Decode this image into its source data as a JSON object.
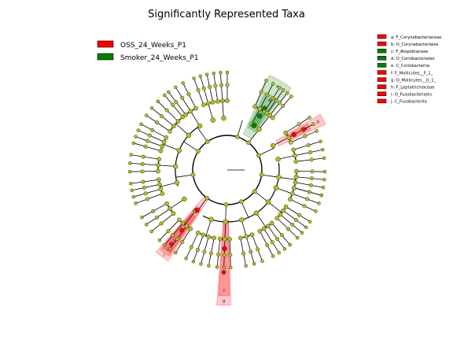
{
  "chart_data": {
    "type": "cladogram",
    "title": "Significantly Represented Taxa",
    "groups": [
      {
        "name": "OSS_24_Weeks_P1",
        "color": "#ff0000"
      },
      {
        "name": "Smoker_24_Weeks_P1",
        "color": "#008000"
      }
    ],
    "background_node_color": "#b5bd1e",
    "taxa": [
      {
        "key": "a",
        "label": "a: F_Corynebacteriaceae",
        "group": "OSS_24_Weeks_P1",
        "clade_angle_deg": -28
      },
      {
        "key": "b",
        "label": "b: O_Corynebacteriales",
        "group": "OSS_24_Weeks_P1",
        "clade_angle_deg": -28
      },
      {
        "key": "c",
        "label": "c: F_Atopobiaceae",
        "group": "Smoker_24_Weeks_P1",
        "clade_angle_deg": -59
      },
      {
        "key": "d",
        "label": "d: O_Coriobacteriales",
        "group": "Smoker_24_Weeks_P1",
        "clade_angle_deg": -59
      },
      {
        "key": "e",
        "label": "e: C_Coriobacteriia",
        "group": "Smoker_24_Weeks_P1",
        "clade_angle_deg": -59
      },
      {
        "key": "f",
        "label": "f: F_Mollicutes__F_1_",
        "group": "OSS_24_Weeks_P1",
        "clade_angle_deg": 92
      },
      {
        "key": "g",
        "label": "g: O_Mollicutes__O_1_",
        "group": "OSS_24_Weeks_P1",
        "clade_angle_deg": 92
      },
      {
        "key": "h",
        "label": "h: F_Leptotrichiaceae",
        "group": "OSS_24_Weeks_P1",
        "clade_angle_deg": 92
      },
      {
        "key": "i",
        "label": "i: O_Fusobacteriales",
        "group": "OSS_24_Weeks_P1",
        "clade_angle_deg": 92
      },
      {
        "key": "j",
        "label": "j: C_Fusobacteriia",
        "group": "OSS_24_Weeks_P1",
        "clade_angle_deg": 127
      }
    ],
    "clade_letters": [
      "e",
      "d",
      "c",
      "b",
      "a",
      "g",
      "f",
      "j",
      "i",
      "h"
    ]
  }
}
